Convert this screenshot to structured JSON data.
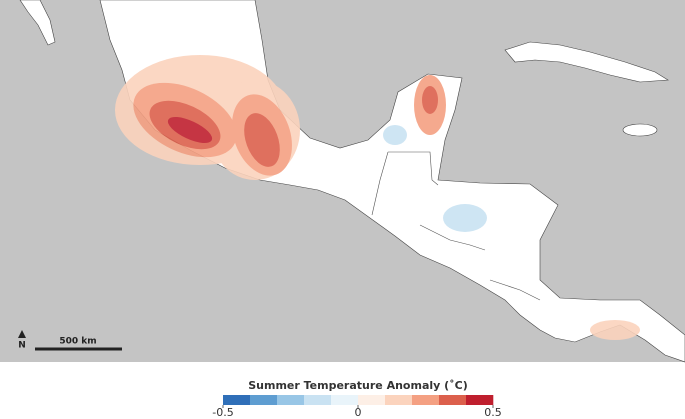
{
  "map": {
    "scale_label": "500 km",
    "north_label": "N"
  },
  "legend": {
    "title": "Summer Temperature Anomaly (˚C)",
    "range": [
      -0.5,
      0.5
    ],
    "ticks": [
      -0.5,
      0,
      0.5
    ],
    "colors": [
      "#2f6fb8",
      "#5e9dd1",
      "#98c6e6",
      "#c9e2f2",
      "#e9f4fa",
      "#fdefe6",
      "#fbd3bd",
      "#f4a082",
      "#dc604c",
      "#bf1f2e"
    ]
  }
}
